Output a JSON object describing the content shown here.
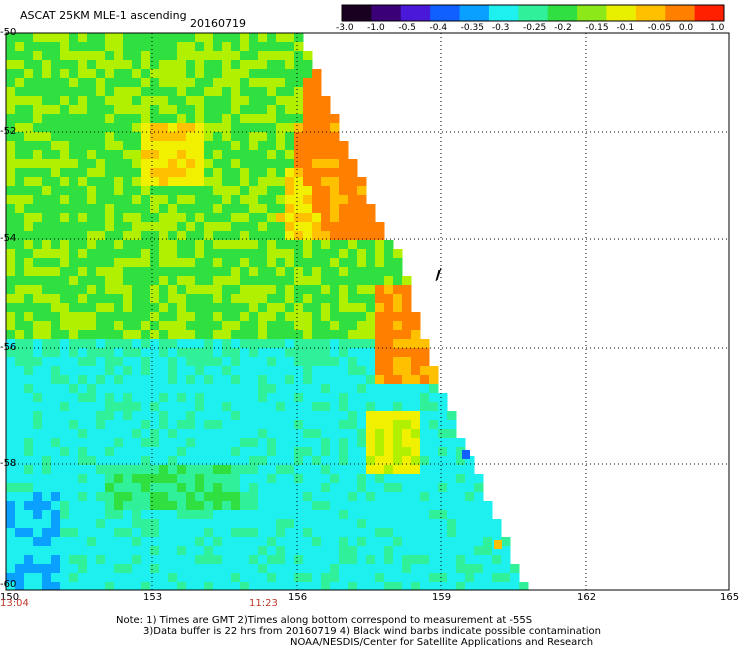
{
  "header": {
    "title": "ASCAT 25KM MLE-1 ascending",
    "date": "20160719"
  },
  "colorbar": {
    "labels": [
      "-3.0",
      "-1.0",
      "-0.5",
      "-0.4",
      "-0.35",
      "-0.3",
      "-0.25",
      "-0.2",
      "-0.15",
      "-0.1",
      "-0.05",
      "0.0",
      "1.0"
    ],
    "colors": [
      "#1a0020",
      "#3a0078",
      "#4a18d8",
      "#1060ff",
      "#0aa0ff",
      "#1ef0f0",
      "#30f09a",
      "#30e040",
      "#8ce818",
      "#e8f000",
      "#ffc000",
      "#ff8000",
      "#ff2000"
    ]
  },
  "axes": {
    "y_labels": [
      "-50",
      "-52",
      "-54",
      "-56",
      "-58",
      "-60"
    ],
    "x_labels": [
      "150",
      "153",
      "156",
      "159",
      "162",
      "165"
    ],
    "time_labels": [
      "13:04",
      "11:23"
    ]
  },
  "notes": {
    "line1": "Note: 1) Times are GMT 2)Times along bottom correspond to measurement at -55S",
    "line2": "3)Data buffer is 22 hrs from 20160719 4) Black wind barbs indicate possible contamination",
    "credit": "NOAA/NESDIS/Center for Satellite Applications and Research"
  },
  "map_data": {
    "type": "heatmap",
    "swath_edge_longitude": 159,
    "colors": {
      "orange": "#ff8000",
      "yellow_orange": "#ffc000",
      "yellow": "#f0f000",
      "yellow_green": "#b0f000",
      "green": "#30e040",
      "teal_green": "#30f09a",
      "cyan": "#1ef0f0",
      "light_blue": "#0aa0ff",
      "blue": "#1060ff",
      "red": "#ff2000"
    }
  }
}
